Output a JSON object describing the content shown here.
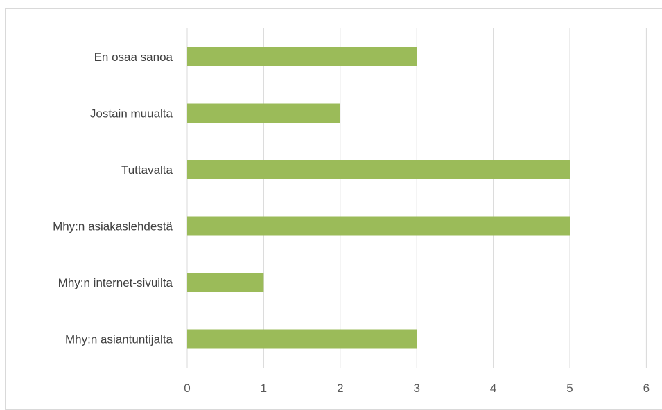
{
  "chart_data": {
    "type": "bar",
    "orientation": "horizontal",
    "categories": [
      "En osaa sanoa",
      "Jostain muualta",
      "Tuttavalta",
      "Mhy:n asiakaslehdestä",
      "Mhy:n internet-sivuilta",
      "Mhy:n asiantuntijalta"
    ],
    "values": [
      3,
      2,
      5,
      5,
      1,
      3
    ],
    "xlim": [
      0,
      6
    ],
    "x_ticks": [
      "0",
      "1",
      "2",
      "3",
      "4",
      "5",
      "6"
    ],
    "grid": "vertical",
    "bar_color": "#9bbb59",
    "grid_color": "#d9d9d9",
    "title": "",
    "xlabel": "",
    "ylabel": ""
  }
}
